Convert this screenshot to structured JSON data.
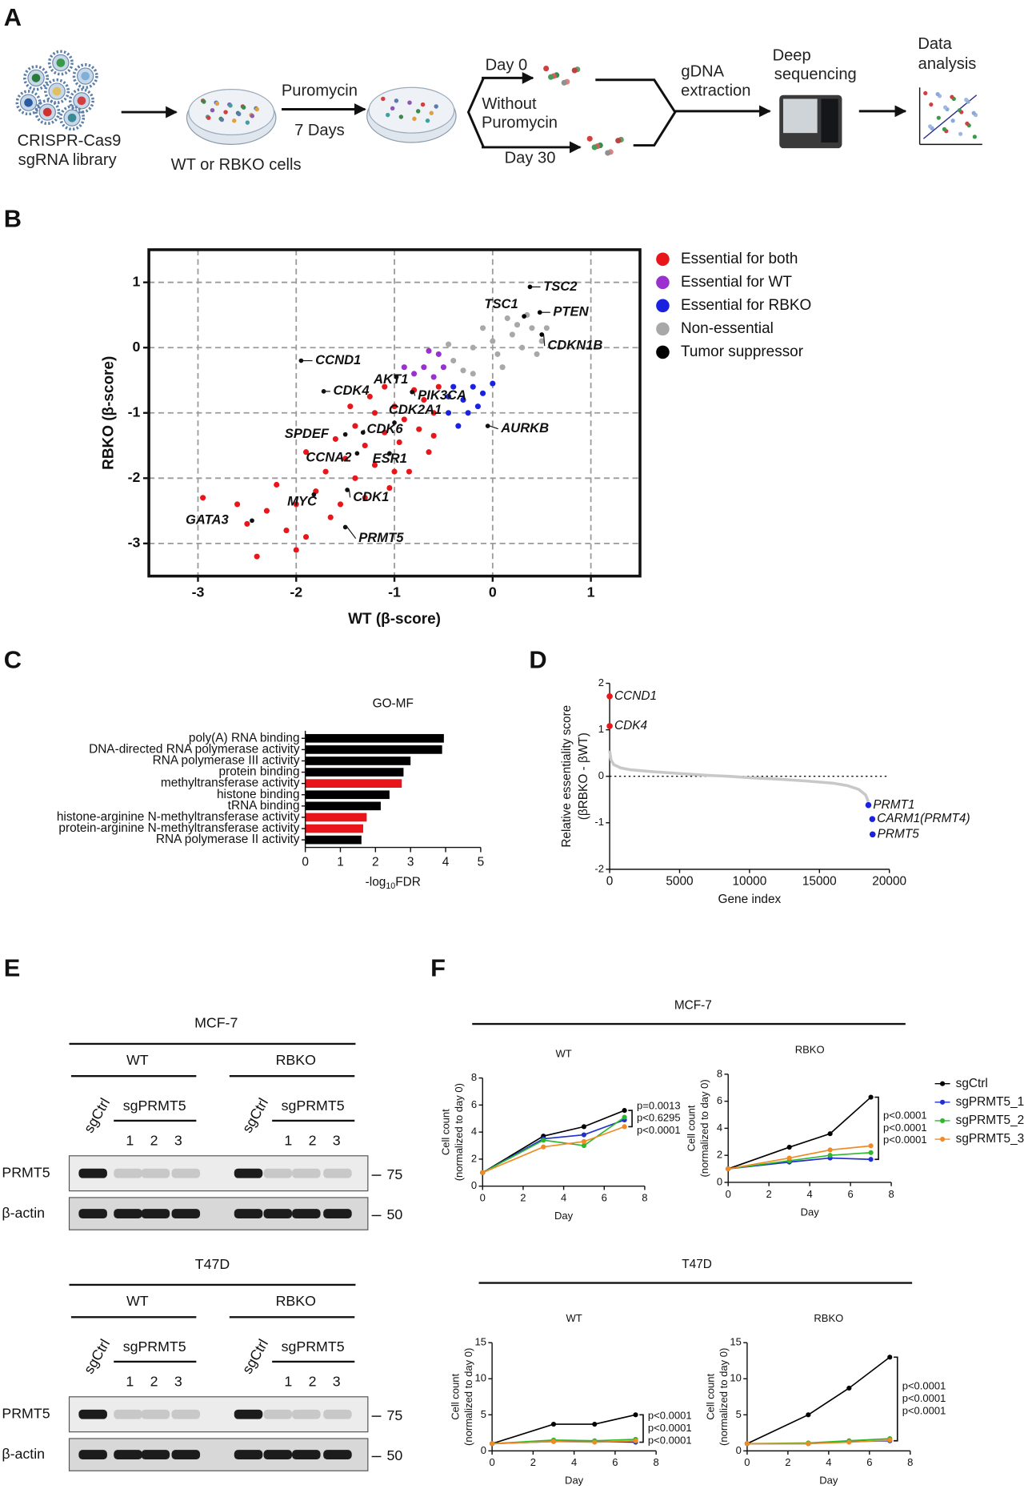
{
  "panel_labels": [
    "A",
    "B",
    "C",
    "D",
    "E",
    "F"
  ],
  "schematic": {
    "library": [
      "CRISPR-Cas9",
      "sgRNA library"
    ],
    "selection": [
      "Puromycin",
      "7 Days"
    ],
    "cells": "WT or RBKO cells",
    "day0": "Day 0",
    "without": [
      "Without",
      "Puromycin"
    ],
    "day30": "Day 30",
    "extraction": [
      "gDNA",
      "extraction"
    ],
    "sequencing": [
      "Deep",
      "sequencing"
    ],
    "analysis": [
      "Data",
      "analysis"
    ]
  },
  "chart_data": [
    {
      "type": "scatter",
      "xlabel": "WT (β-score)",
      "ylabel": "RBKO (β-score)",
      "xlim": [
        -3.5,
        1.5
      ],
      "ylim": [
        -3.5,
        1.5
      ],
      "xticks": [
        -3,
        -2,
        -1,
        0,
        1
      ],
      "yticks": [
        -3,
        -2,
        -1,
        0,
        1
      ],
      "grid": true,
      "legend": "right",
      "series": [
        {
          "name": "Essential for both",
          "color": "#e8151b",
          "x": [
            -0.55,
            -0.7,
            -0.6,
            -0.8,
            -0.9,
            -1.0,
            -1.1,
            -0.75,
            -1.2,
            -1.3,
            -0.95,
            -1.4,
            -1.5,
            -1.2,
            -1.6,
            -1.7,
            -1.4,
            -1.8,
            -1.55,
            -1.9,
            -2.0,
            -2.2,
            -1.3,
            -2.3,
            -2.1,
            -2.5,
            -2.6,
            -1.9,
            -2.0,
            -2.4,
            -1.0,
            -0.65,
            -0.85,
            -1.1,
            -1.25,
            -0.6,
            -1.65,
            -2.95,
            -1.05,
            -1.45
          ],
          "values": [
            -0.6,
            -0.8,
            -1.0,
            -0.65,
            -1.1,
            -0.9,
            -1.3,
            -1.25,
            -1.0,
            -1.5,
            -1.45,
            -1.2,
            -1.7,
            -1.8,
            -1.4,
            -1.9,
            -2.0,
            -2.2,
            -2.4,
            -1.6,
            -2.4,
            -2.1,
            -2.3,
            -2.5,
            -2.8,
            -2.7,
            -2.4,
            -2.9,
            -3.1,
            -3.2,
            -1.9,
            -1.6,
            -1.9,
            -0.6,
            -0.75,
            -1.35,
            -2.6,
            -2.3,
            -2.15,
            -0.9
          ]
        },
        {
          "name": "Essential for WT",
          "color": "#9b2fd0",
          "x": [
            -0.55,
            -0.7,
            -0.6,
            -0.8,
            -0.5,
            -0.9,
            -0.65
          ],
          "values": [
            -0.1,
            -0.3,
            -0.45,
            -0.4,
            -0.3,
            -0.3,
            -0.05
          ]
        },
        {
          "name": "Essential for RBKO",
          "color": "#1a22e0",
          "x": [
            -0.4,
            -0.3,
            -0.2,
            -0.45,
            -0.1,
            -0.35,
            -0.25,
            0.0,
            -0.15,
            -0.45
          ],
          "values": [
            -0.6,
            -0.8,
            -0.6,
            -1.0,
            -0.7,
            -1.2,
            -1.0,
            -0.55,
            -0.9,
            -0.75
          ]
        },
        {
          "name": "Non-essential",
          "color": "#a8a8a8",
          "x": [
            -0.4,
            -0.2,
            0,
            0.2,
            0.4,
            -0.3,
            0.1,
            0.3,
            0.5,
            -0.1,
            0.15,
            0.35,
            0.55,
            -0.45,
            0.05,
            -0.2,
            0.25,
            0.45
          ],
          "values": [
            -0.2,
            0.0,
            0.1,
            0.2,
            0.3,
            -0.35,
            -0.3,
            0.0,
            0.1,
            0.3,
            0.45,
            0.5,
            0.3,
            0.05,
            -0.1,
            -0.4,
            0.35,
            -0.1
          ]
        },
        {
          "name": "Tumor suppressor",
          "color": "#000000",
          "labels": [
            "TSC2",
            "TSC1",
            "PTEN",
            "CDKN1B"
          ],
          "x": [
            0.38,
            0.32,
            0.48,
            0.5
          ],
          "values": [
            0.93,
            0.48,
            0.54,
            0.2
          ]
        }
      ],
      "annotations": [
        {
          "text": "CCND1",
          "x": -1.95,
          "y": -0.2
        },
        {
          "text": "CDK4",
          "x": -1.72,
          "y": -0.67
        },
        {
          "text": "AKT1",
          "x": -0.98,
          "y": -0.45
        },
        {
          "text": "PIK3CA",
          "x": -0.82,
          "y": -0.68
        },
        {
          "text": "AURKB",
          "x": -0.05,
          "y": -1.2
        },
        {
          "text": "SPDEF",
          "x": -1.5,
          "y": -1.33
        },
        {
          "text": "CDK6",
          "x": -1.32,
          "y": -1.3
        },
        {
          "text": "CDK2A1",
          "x": -1.0,
          "y": -1.15
        },
        {
          "text": "CCNA2",
          "x": -1.38,
          "y": -1.62
        },
        {
          "text": "ESR1",
          "x": -1.05,
          "y": -1.62
        },
        {
          "text": "MYC",
          "x": -1.82,
          "y": -2.25
        },
        {
          "text": "CDK1",
          "x": -1.48,
          "y": -2.18
        },
        {
          "text": "GATA3",
          "x": -2.45,
          "y": -2.65
        },
        {
          "text": "PRMT5",
          "x": -1.5,
          "y": -2.75
        }
      ]
    },
    {
      "type": "barh",
      "title": "GO-MF",
      "xlabel": [
        "-log",
        "10",
        "FDR"
      ],
      "categories": [
        "poly(A) RNA binding",
        "DNA-directed RNA polymerase activity",
        "RNA polymerase III activity",
        "protein binding",
        "methyltransferase activity",
        "histone binding",
        "tRNA binding",
        "histone-arginine N-methyltransferase activity",
        "protein-arginine N-methyltransferase activity",
        "RNA polymerase II activity"
      ],
      "values": [
        3.95,
        3.9,
        3.0,
        2.8,
        2.75,
        2.4,
        2.15,
        1.75,
        1.65,
        1.6
      ],
      "colors": [
        "#000000",
        "#000000",
        "#000000",
        "#000000",
        "#e8151b",
        "#000000",
        "#000000",
        "#e8151b",
        "#e8151b",
        "#000000"
      ],
      "xlim": [
        0,
        5
      ],
      "xticks": [
        0,
        1,
        2,
        3,
        4,
        5
      ]
    },
    {
      "type": "line",
      "xlabel": "Gene index",
      "ylabel": [
        "Relative essentiality score",
        "(βRBKO - βWT)"
      ],
      "x": [
        0,
        100,
        300,
        800,
        1500,
        3000,
        5000,
        7000,
        8500,
        10000,
        12000,
        14000,
        16000,
        17000,
        17800,
        18300,
        18500
      ],
      "values": [
        0.55,
        0.35,
        0.25,
        0.18,
        0.14,
        0.1,
        0.06,
        0.02,
        0,
        -0.03,
        -0.06,
        -0.1,
        -0.15,
        -0.2,
        -0.28,
        -0.4,
        -0.55
      ],
      "color": "#c8c8c8",
      "zero_line": true,
      "xlim": [
        0,
        20000
      ],
      "xticks": [
        0,
        5000,
        10000,
        15000,
        20000
      ],
      "ylim": [
        -2,
        2
      ],
      "yticks": [
        -2,
        -1,
        0,
        1,
        2
      ],
      "highlights": [
        {
          "text": "CCND1",
          "x": 0,
          "y": 1.72,
          "color": "#e8151b"
        },
        {
          "text": "CDK4",
          "x": 0,
          "y": 1.08,
          "color": "#e8151b"
        },
        {
          "text": "PRMT1",
          "x": 18500,
          "y": -0.62,
          "color": "#1a22e0"
        },
        {
          "text": "CARM1(PRMT4)",
          "x": 18780,
          "y": -0.92,
          "color": "#1a22e0"
        },
        {
          "text": "PRMT5",
          "x": 18800,
          "y": -1.25,
          "color": "#1a22e0"
        }
      ]
    },
    {
      "type": "line",
      "suptitle": "MCF-7",
      "title": "WT",
      "xlabel": "Day",
      "ylabel": [
        "Cell count",
        "(normalized to day 0)"
      ],
      "x": [
        0,
        3,
        5,
        7
      ],
      "xlim": [
        0,
        8
      ],
      "xticks": [
        0,
        2,
        4,
        6,
        8
      ],
      "ylim": [
        0,
        8
      ],
      "yticks": [
        0,
        2,
        4,
        6,
        8
      ],
      "series": [
        {
          "color": "#000000",
          "values": [
            1,
            3.7,
            4.4,
            5.6
          ]
        },
        {
          "color": "#1f2fd0",
          "values": [
            1,
            3.5,
            3.8,
            4.9
          ],
          "p_value": "p=0.0013"
        },
        {
          "color": "#2db82d",
          "values": [
            1,
            3.4,
            3.0,
            5.1
          ],
          "p_value": "p<0.6295"
        },
        {
          "color": "#f08a24",
          "values": [
            1,
            2.9,
            3.3,
            4.4
          ],
          "p_value": "p<0.0001"
        }
      ]
    },
    {
      "type": "line",
      "title": "RBKO",
      "xlabel": "Day",
      "ylabel": [
        "Cell count",
        "(normalized to day 0)"
      ],
      "legend": "right",
      "x": [
        0,
        3,
        5,
        7
      ],
      "xlim": [
        0,
        8
      ],
      "xticks": [
        0,
        2,
        4,
        6,
        8
      ],
      "ylim": [
        0,
        8
      ],
      "yticks": [
        0,
        2,
        4,
        6,
        8
      ],
      "series": [
        {
          "name": "sgCtrl",
          "color": "#000000",
          "values": [
            1,
            2.6,
            3.6,
            6.3
          ]
        },
        {
          "name": "sgPRMT5_1",
          "color": "#1f2fd0",
          "values": [
            1,
            1.5,
            1.8,
            1.7
          ],
          "p_value": "p<0.0001"
        },
        {
          "name": "sgPRMT5_2",
          "color": "#2db82d",
          "values": [
            1,
            1.6,
            2.0,
            2.2
          ],
          "p_value": "p<0.0001"
        },
        {
          "name": "sgPRMT5_3",
          "color": "#f08a24",
          "values": [
            1,
            1.8,
            2.4,
            2.7
          ],
          "p_value": "p<0.0001"
        }
      ]
    },
    {
      "type": "line",
      "suptitle": "T47D",
      "title": "WT",
      "xlabel": "Day",
      "ylabel": [
        "Cell count",
        "(normalized to day 0)"
      ],
      "x": [
        0,
        3,
        5,
        7
      ],
      "xlim": [
        0,
        8
      ],
      "xticks": [
        0,
        2,
        4,
        6,
        8
      ],
      "ylim": [
        0,
        15
      ],
      "yticks": [
        0,
        5,
        10,
        15
      ],
      "series": [
        {
          "color": "#000000",
          "values": [
            1,
            3.7,
            3.7,
            5
          ]
        },
        {
          "color": "#1f2fd0",
          "values": [
            1,
            1.3,
            1.3,
            1.2
          ],
          "p_value": "p<0.0001"
        },
        {
          "color": "#2db82d",
          "values": [
            1,
            1.5,
            1.4,
            1.6
          ],
          "p_value": "p<0.0001"
        },
        {
          "color": "#f08a24",
          "values": [
            1,
            1.3,
            1.2,
            1.4
          ],
          "p_value": "p<0.0001"
        }
      ]
    },
    {
      "type": "line",
      "title": "RBKO",
      "xlabel": "Day",
      "ylabel": [
        "Cell count",
        "(normalized to day 0)"
      ],
      "x": [
        0,
        3,
        5,
        7
      ],
      "xlim": [
        0,
        8
      ],
      "xticks": [
        0,
        2,
        4,
        6,
        8
      ],
      "ylim": [
        0,
        15
      ],
      "yticks": [
        0,
        5,
        10,
        15
      ],
      "series": [
        {
          "color": "#000000",
          "values": [
            1,
            5,
            8.7,
            13
          ]
        },
        {
          "color": "#1f2fd0",
          "values": [
            1,
            1,
            1.3,
            1.4
          ],
          "p_value": "p<0.0001"
        },
        {
          "color": "#2db82d",
          "values": [
            1,
            1.1,
            1.4,
            1.7
          ],
          "p_value": "p<0.0001"
        },
        {
          "color": "#f08a24",
          "values": [
            1,
            1,
            1.2,
            1.5
          ],
          "p_value": "p<0.0001"
        }
      ]
    }
  ],
  "blots": [
    {
      "cell_line": "MCF-7",
      "groups": [
        {
          "name": "WT",
          "control": "sgCtrl",
          "target": "sgPRMT5",
          "guides": [
            "1",
            "2",
            "3"
          ]
        },
        {
          "name": "RBKO",
          "control": "sgCtrl",
          "target": "sgPRMT5",
          "guides": [
            "1",
            "2",
            "3"
          ]
        }
      ],
      "rows": [
        {
          "name": "PRMT5",
          "marker": 75
        },
        {
          "name": "β-actin",
          "marker": 50
        }
      ]
    },
    {
      "cell_line": "T47D",
      "groups": [
        {
          "name": "WT",
          "control": "sgCtrl",
          "target": "sgPRMT5",
          "guides": [
            "1",
            "2",
            "3"
          ]
        },
        {
          "name": "RBKO",
          "control": "sgCtrl",
          "target": "sgPRMT5",
          "guides": [
            "1",
            "2",
            "3"
          ]
        }
      ],
      "rows": [
        {
          "name": "PRMT5",
          "marker": 75
        },
        {
          "name": "β-actin",
          "marker": 50
        }
      ]
    }
  ]
}
